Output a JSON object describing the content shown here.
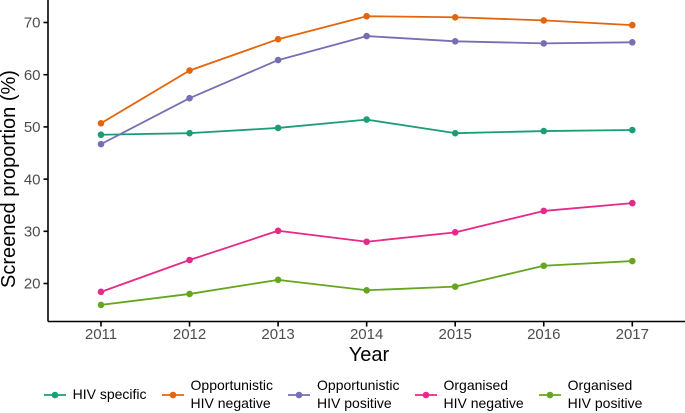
{
  "chart_data": {
    "type": "line",
    "title": "",
    "xlabel": "Year",
    "ylabel": "Screened proportion (%)",
    "x": [
      2011,
      2012,
      2013,
      2014,
      2015,
      2016,
      2017
    ],
    "y_ticks": [
      20,
      30,
      40,
      50,
      60,
      70
    ],
    "ylim_visible": [
      12.5,
      74.5
    ],
    "grid": false,
    "legend_position": "bottom",
    "marker": "point-on-line",
    "series": [
      {
        "name": "HIV specific",
        "legend_lines": [
          "HIV specific"
        ],
        "color": "#1b9e77",
        "values": [
          48.5,
          48.8,
          49.8,
          51.4,
          48.8,
          49.2,
          49.4
        ]
      },
      {
        "name": "Opportunistic HIV negative",
        "legend_lines": [
          "Opportunistic",
          "HIV negative"
        ],
        "color": "#e3660e",
        "values": [
          50.7,
          60.8,
          66.8,
          71.2,
          71.0,
          70.4,
          69.5
        ]
      },
      {
        "name": "Opportunistic HIV positive",
        "legend_lines": [
          "Opportunistic",
          "HIV positive"
        ],
        "color": "#7570b3",
        "values": [
          46.7,
          55.5,
          62.8,
          67.4,
          66.4,
          66.0,
          66.2
        ]
      },
      {
        "name": "Organised HIV negative",
        "legend_lines": [
          "Organised",
          "HIV negative"
        ],
        "color": "#e7298a",
        "values": [
          18.4,
          24.5,
          30.1,
          28.0,
          29.8,
          33.9,
          35.4
        ]
      },
      {
        "name": "Organised HIV positive",
        "legend_lines": [
          "Organised",
          "HIV positive"
        ],
        "color": "#66a61e",
        "values": [
          15.9,
          18.0,
          20.7,
          18.7,
          19.4,
          23.4,
          24.3
        ]
      }
    ]
  },
  "axes": {
    "tick_label_color": "#4d4d4d",
    "axis_line_color": "#000000"
  }
}
